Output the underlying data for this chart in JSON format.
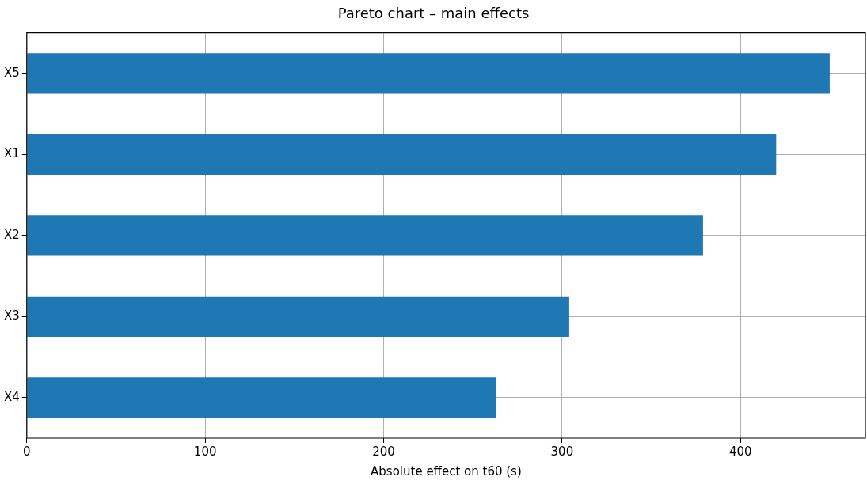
{
  "chart_data": {
    "type": "bar",
    "orientation": "horizontal",
    "title": "Pareto chart – main effects",
    "xlabel": "Absolute effect on t60 (s)",
    "categories": [
      "X5",
      "X1",
      "X2",
      "X3",
      "X4"
    ],
    "values": [
      450,
      420,
      379,
      304,
      263
    ],
    "color": "#1f77b4",
    "xlim": [
      0,
      470
    ],
    "xticks": [
      0,
      100,
      200,
      300,
      400
    ],
    "grid": true
  }
}
